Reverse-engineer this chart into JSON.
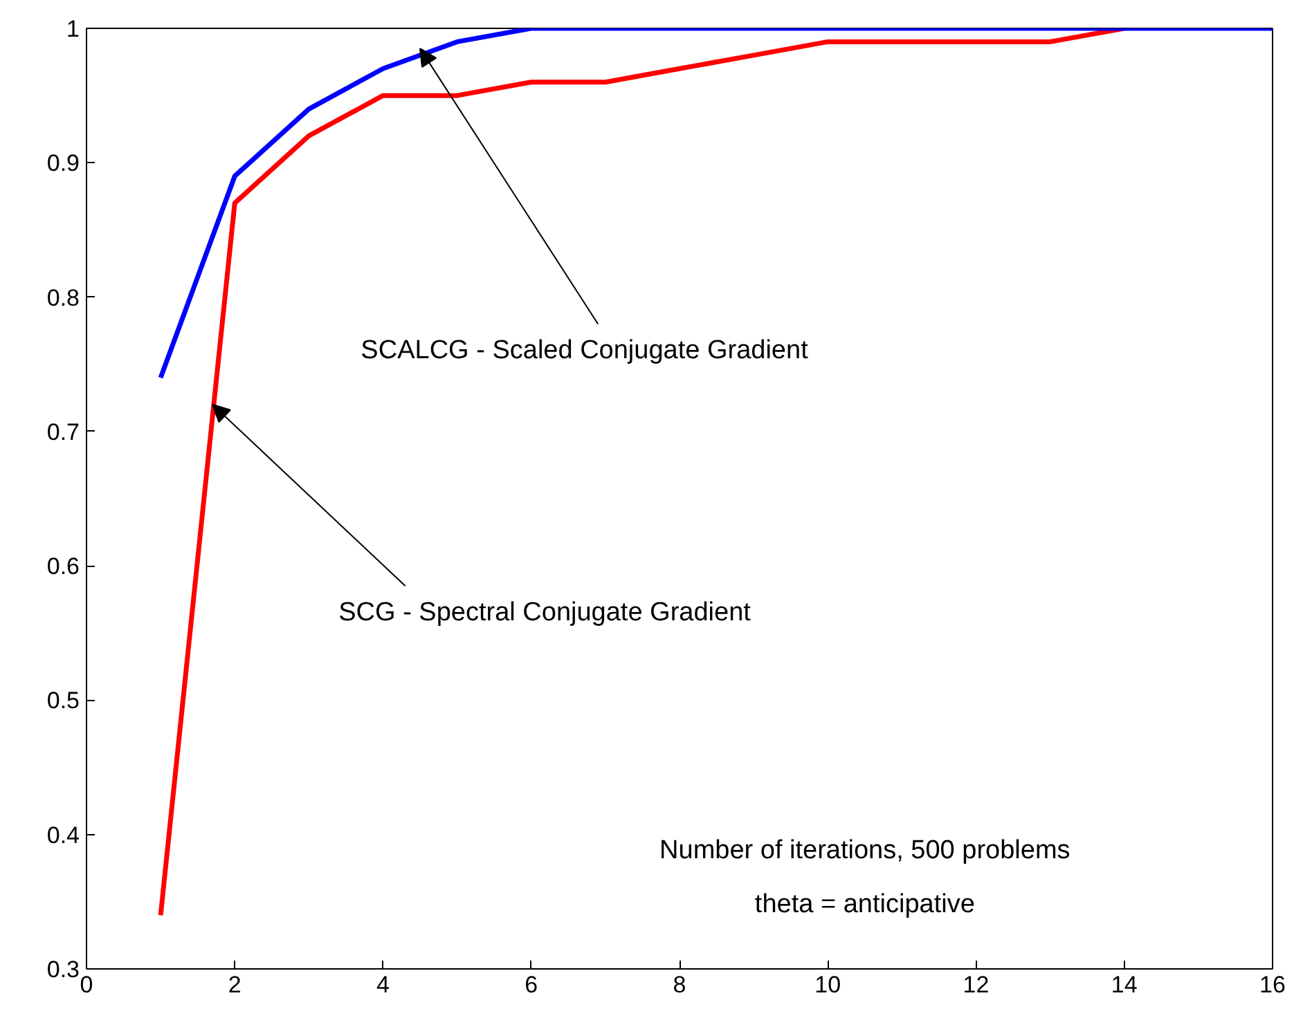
{
  "chart_data": {
    "type": "line",
    "xlim": [
      0,
      16
    ],
    "ylim": [
      0.3,
      1
    ],
    "xticks": [
      0,
      2,
      4,
      6,
      8,
      10,
      12,
      14,
      16
    ],
    "yticks": [
      0.3,
      0.4,
      0.5,
      0.6,
      0.7,
      0.8,
      0.9,
      1
    ],
    "grid": false,
    "line_style": "solid",
    "series": [
      {
        "color": "#ff0000",
        "x": [
          1,
          2,
          3,
          4,
          5,
          6,
          7,
          8,
          9,
          10,
          11,
          12,
          13,
          14
        ],
        "values": [
          0.34,
          0.87,
          0.92,
          0.95,
          0.95,
          0.96,
          0.96,
          0.97,
          0.98,
          0.99,
          0.99,
          0.99,
          0.99,
          1.0
        ]
      },
      {
        "color": "#0000ff",
        "x": [
          1,
          2,
          3,
          4,
          5,
          6,
          7,
          8,
          9,
          10,
          11,
          12,
          13,
          14,
          15,
          16
        ],
        "values": [
          0.74,
          0.89,
          0.94,
          0.97,
          0.99,
          1.0,
          1.0,
          1.0,
          1.0,
          1.0,
          1.0,
          1.0,
          1.0,
          1.0,
          1.0,
          1.0
        ]
      }
    ],
    "annotations": [
      {
        "text": "SCALCG - Scaled Conjugate Gradient",
        "x": 4.5,
        "y": 0.985
      },
      {
        "text": "SCG - Spectral Conjugate Gradient",
        "x": 1.7,
        "y": 0.72
      },
      "Number of iterations, 500 problems",
      "theta = anticipative"
    ]
  }
}
